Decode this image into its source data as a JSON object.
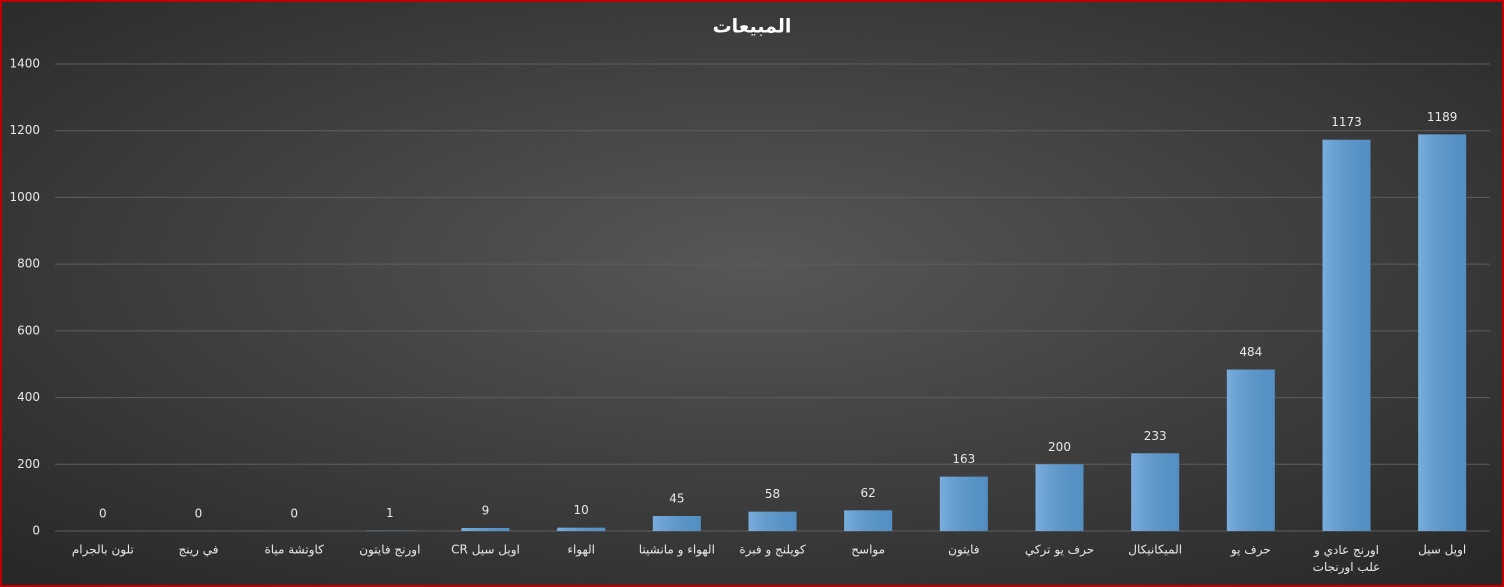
{
  "chart_data": {
    "type": "bar",
    "title": "المبيعات",
    "categories": [
      "تلون بالجرام",
      "في رينج",
      "كاوتشة مياة",
      "اورنج فايتون",
      "اويل سيل CR",
      "الهواء",
      "الهواء و مانشيتا",
      "كويلنج و فبرة",
      "مواسح",
      "فايتون",
      "حرف يو تركي",
      "الميكانيكال",
      "حرف يو",
      "اورنج عادي و علب اورنجات",
      "اويل سيل"
    ],
    "values": [
      0,
      0,
      0,
      1,
      9,
      10,
      45,
      58,
      62,
      163,
      200,
      233,
      484,
      1173,
      1189
    ],
    "color": "#5b9bd5",
    "ylim": [
      0,
      1400
    ],
    "yticks": [
      0,
      200,
      400,
      600,
      800,
      1000,
      1200,
      1400
    ],
    "grid": true
  }
}
